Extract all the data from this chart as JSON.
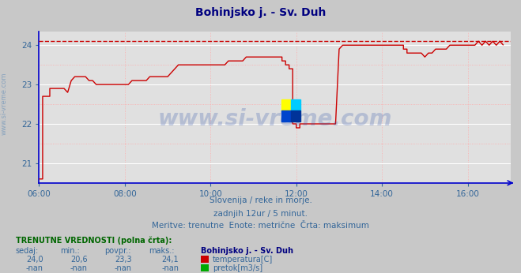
{
  "title": "Bohinjsko j. - Sv. Duh",
  "title_color": "#000080",
  "bg_color": "#c8c8c8",
  "plot_bg_color": "#e0e0e0",
  "grid_color_major": "#ffffff",
  "grid_color_minor": "#ffaaaa",
  "xlim_hours": [
    6,
    17
  ],
  "ylim": [
    20.5,
    24.35
  ],
  "yticks": [
    21,
    22,
    23,
    24
  ],
  "xtick_labels": [
    "06:00",
    "08:00",
    "10:00",
    "12:00",
    "14:00",
    "16:00"
  ],
  "xtick_positions": [
    6,
    8,
    10,
    12,
    14,
    16
  ],
  "max_line_y": 24.1,
  "line_color": "#cc0000",
  "axis_color": "#0000cc",
  "tick_color": "#336699",
  "watermark": "www.si-vreme.com",
  "watermark_color": "#3355aa",
  "watermark_alpha": 0.25,
  "sub_text1": "Slovenija / reke in morje.",
  "sub_text2": "zadnjih 12ur / 5 minut.",
  "sub_text3": "Meritve: trenutne  Enote: metrične  Črta: maksimum",
  "sub_text_color": "#336699",
  "info_title": "TRENUTNE VREDNOSTI (polna črta):",
  "info_title_color": "#006600",
  "info_col_headers": [
    "sedaj:",
    "min.:",
    "povpr.:",
    "maks.:"
  ],
  "info_vals_temp": [
    "24,0",
    "20,6",
    "23,3",
    "24,1"
  ],
  "info_vals_pretok": [
    "-nan",
    "-nan",
    "-nan",
    "-nan"
  ],
  "info_station": "Bohinjsko j. - Sv. Duh",
  "info_station_color": "#000080",
  "info_val_color": "#336699",
  "legend_temp_color": "#cc0000",
  "legend_pretok_color": "#00aa00",
  "sidewater_color": "#7799bb",
  "temp_data_x": [
    6.0,
    6.083,
    6.083,
    6.25,
    6.25,
    6.417,
    6.417,
    6.5,
    6.5,
    6.583,
    6.583,
    6.667,
    6.667,
    6.75,
    6.75,
    6.833,
    6.833,
    6.917,
    6.917,
    7.0,
    7.0,
    7.083,
    7.083,
    7.167,
    7.167,
    7.25,
    7.25,
    7.333,
    7.333,
    7.417,
    7.417,
    7.5,
    7.5,
    7.583,
    7.583,
    7.667,
    7.667,
    7.75,
    7.75,
    7.833,
    7.833,
    7.917,
    7.917,
    8.0,
    8.0,
    8.083,
    8.083,
    8.167,
    8.167,
    8.25,
    8.25,
    8.333,
    8.333,
    8.417,
    8.417,
    8.5,
    8.5,
    8.583,
    8.583,
    8.667,
    8.667,
    8.75,
    8.75,
    8.833,
    8.833,
    8.917,
    8.917,
    9.0,
    9.0,
    9.083,
    9.083,
    9.167,
    9.167,
    9.25,
    9.25,
    9.333,
    9.333,
    9.417,
    9.417,
    9.5,
    9.5,
    9.583,
    9.583,
    9.667,
    9.667,
    9.75,
    9.75,
    9.833,
    9.833,
    9.917,
    9.917,
    10.0,
    10.0,
    10.083,
    10.083,
    10.167,
    10.167,
    10.25,
    10.25,
    10.333,
    10.333,
    10.417,
    10.417,
    10.5,
    10.5,
    10.583,
    10.583,
    10.667,
    10.667,
    10.75,
    10.75,
    10.833,
    10.833,
    10.917,
    10.917,
    11.0,
    11.0,
    11.083,
    11.083,
    11.167,
    11.167,
    11.25,
    11.25,
    11.333,
    11.333,
    11.417,
    11.417,
    11.5,
    11.5,
    11.583,
    11.583,
    11.667,
    11.667,
    11.75,
    11.75,
    11.833,
    11.833,
    11.917,
    11.917,
    12.0,
    12.0,
    12.083,
    12.083,
    12.167,
    12.167,
    12.25,
    12.25,
    12.333,
    12.333,
    12.417,
    12.417,
    12.5,
    12.5,
    12.583,
    12.583,
    12.667,
    12.667,
    12.75,
    12.75,
    12.833,
    12.833,
    12.917,
    12.917,
    13.0,
    13.0,
    13.083,
    13.083,
    13.167,
    13.167,
    13.25,
    13.25,
    13.333,
    13.333,
    13.417,
    13.417,
    13.5,
    13.5,
    13.583,
    13.583,
    13.667,
    13.667,
    13.75,
    13.75,
    13.833,
    13.833,
    13.917,
    13.917,
    14.0,
    14.0,
    14.083,
    14.083,
    14.167,
    14.167,
    14.25,
    14.25,
    14.333,
    14.333,
    14.417,
    14.417,
    14.5,
    14.5,
    14.583,
    14.583,
    14.667,
    14.667,
    14.75,
    14.75,
    14.833,
    14.833,
    14.917,
    14.917,
    15.0,
    15.0,
    15.083,
    15.083,
    15.167,
    15.167,
    15.25,
    15.25,
    15.333,
    15.333,
    15.417,
    15.417,
    15.5,
    15.5,
    15.583,
    15.583,
    15.667,
    15.667,
    15.75,
    15.75,
    15.833,
    15.833,
    15.917,
    15.917,
    16.0,
    16.0,
    16.083,
    16.083,
    16.167,
    16.167,
    16.25,
    16.25,
    16.333,
    16.333,
    16.417,
    16.417,
    16.5,
    16.5,
    16.583,
    16.583,
    16.667,
    16.667,
    16.75,
    16.75,
    16.833
  ],
  "temp_data_y": [
    20.6,
    20.6,
    22.7,
    22.7,
    22.9,
    22.9,
    22.9,
    22.9,
    22.9,
    22.9,
    22.9,
    22.8,
    22.8,
    23.1,
    23.1,
    23.2,
    23.2,
    23.2,
    23.2,
    23.2,
    23.2,
    23.2,
    23.2,
    23.1,
    23.1,
    23.1,
    23.1,
    23.0,
    23.0,
    23.0,
    23.0,
    23.0,
    23.0,
    23.0,
    23.0,
    23.0,
    23.0,
    23.0,
    23.0,
    23.0,
    23.0,
    23.0,
    23.0,
    23.0,
    23.0,
    23.0,
    23.0,
    23.1,
    23.1,
    23.1,
    23.1,
    23.1,
    23.1,
    23.1,
    23.1,
    23.1,
    23.1,
    23.2,
    23.2,
    23.2,
    23.2,
    23.2,
    23.2,
    23.2,
    23.2,
    23.2,
    23.2,
    23.2,
    23.2,
    23.3,
    23.3,
    23.4,
    23.4,
    23.5,
    23.5,
    23.5,
    23.5,
    23.5,
    23.5,
    23.5,
    23.5,
    23.5,
    23.5,
    23.5,
    23.5,
    23.5,
    23.5,
    23.5,
    23.5,
    23.5,
    23.5,
    23.5,
    23.5,
    23.5,
    23.5,
    23.5,
    23.5,
    23.5,
    23.5,
    23.5,
    23.5,
    23.6,
    23.6,
    23.6,
    23.6,
    23.6,
    23.6,
    23.6,
    23.6,
    23.6,
    23.6,
    23.7,
    23.7,
    23.7,
    23.7,
    23.7,
    23.7,
    23.7,
    23.7,
    23.7,
    23.7,
    23.7,
    23.7,
    23.7,
    23.7,
    23.7,
    23.7,
    23.7,
    23.7,
    23.7,
    23.7,
    23.7,
    23.6,
    23.6,
    23.5,
    23.5,
    23.4,
    23.4,
    22.0,
    22.0,
    21.9,
    21.9,
    22.0,
    22.0,
    22.0,
    22.0,
    22.0,
    22.0,
    22.0,
    22.0,
    22.0,
    22.0,
    22.0,
    22.0,
    22.0,
    22.0,
    22.0,
    22.0,
    22.0,
    22.0,
    22.0,
    22.0,
    22.0,
    23.9,
    23.9,
    24.0,
    24.0,
    24.0,
    24.0,
    24.0,
    24.0,
    24.0,
    24.0,
    24.0,
    24.0,
    24.0,
    24.0,
    24.0,
    24.0,
    24.0,
    24.0,
    24.0,
    24.0,
    24.0,
    24.0,
    24.0,
    24.0,
    24.0,
    24.0,
    24.0,
    24.0,
    24.0,
    24.0,
    24.0,
    24.0,
    24.0,
    24.0,
    24.0,
    24.0,
    24.0,
    23.9,
    23.9,
    23.8,
    23.8,
    23.8,
    23.8,
    23.8,
    23.8,
    23.8,
    23.8,
    23.8,
    23.7,
    23.7,
    23.8,
    23.8,
    23.8,
    23.8,
    23.9,
    23.9,
    23.9,
    23.9,
    23.9,
    23.9,
    23.9,
    23.9,
    24.0,
    24.0,
    24.0,
    24.0,
    24.0,
    24.0,
    24.0,
    24.0,
    24.0,
    24.0,
    24.0,
    24.0,
    24.0,
    24.0,
    24.0,
    24.0,
    24.1,
    24.1,
    24.0,
    24.0,
    24.1,
    24.1,
    24.0,
    24.0,
    24.1,
    24.1,
    24.0,
    24.0,
    24.1,
    24.1,
    24.0
  ]
}
